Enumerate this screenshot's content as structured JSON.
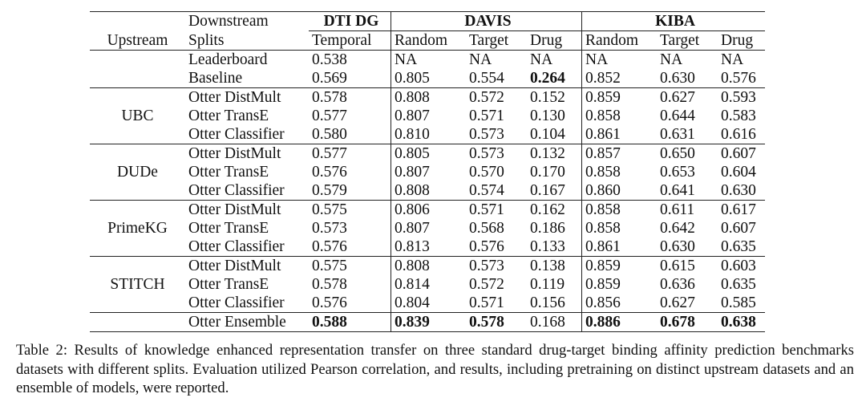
{
  "header": {
    "downstream_label": "Downstream",
    "upstream_label": "Upstream",
    "splits_label": "Splits",
    "groups": [
      "DTI DG",
      "DAVIS",
      "KIBA"
    ],
    "subheaders": [
      "Temporal",
      "Random",
      "Target",
      "Drug",
      "Random",
      "Target",
      "Drug"
    ]
  },
  "rows": [
    {
      "upstream": "",
      "split": "Leaderboard",
      "values": [
        "0.538",
        "NA",
        "NA",
        "NA",
        "NA",
        "NA",
        "NA"
      ]
    },
    {
      "upstream": "",
      "split": "Baseline",
      "values": [
        "0.569",
        "0.805",
        "0.554",
        "0.264",
        "0.852",
        "0.630",
        "0.576"
      ]
    },
    {
      "upstream": "UBC",
      "split": "Otter DistMult",
      "values": [
        "0.578",
        "0.808",
        "0.572",
        "0.152",
        "0.859",
        "0.627",
        "0.593"
      ]
    },
    {
      "upstream": "",
      "split": "Otter TransE",
      "values": [
        "0.577",
        "0.807",
        "0.571",
        "0.130",
        "0.858",
        "0.644",
        "0.583"
      ]
    },
    {
      "upstream": "",
      "split": "Otter Classifier",
      "values": [
        "0.580",
        "0.810",
        "0.573",
        "0.104",
        "0.861",
        "0.631",
        "0.616"
      ]
    },
    {
      "upstream": "DUDe",
      "split": "Otter DistMult",
      "values": [
        "0.577",
        "0.805",
        "0.573",
        "0.132",
        "0.857",
        "0.650",
        "0.607"
      ]
    },
    {
      "upstream": "",
      "split": "Otter TransE",
      "values": [
        "0.576",
        "0.807",
        "0.570",
        "0.170",
        "0.858",
        "0.653",
        "0.604"
      ]
    },
    {
      "upstream": "",
      "split": "Otter Classifier",
      "values": [
        "0.579",
        "0.808",
        "0.574",
        "0.167",
        "0.860",
        "0.641",
        "0.630"
      ]
    },
    {
      "upstream": "PrimeKG",
      "split": "Otter DistMult",
      "values": [
        "0.575",
        "0.806",
        "0.571",
        "0.162",
        "0.858",
        "0.611",
        "0.617"
      ]
    },
    {
      "upstream": "",
      "split": "Otter TransE",
      "values": [
        "0.573",
        "0.807",
        "0.568",
        "0.186",
        "0.858",
        "0.642",
        "0.607"
      ]
    },
    {
      "upstream": "",
      "split": "Otter Classifier",
      "values": [
        "0.576",
        "0.813",
        "0.576",
        "0.133",
        "0.861",
        "0.630",
        "0.635"
      ]
    },
    {
      "upstream": "STITCH",
      "split": "Otter DistMult",
      "values": [
        "0.575",
        "0.808",
        "0.573",
        "0.138",
        "0.859",
        "0.615",
        "0.603"
      ]
    },
    {
      "upstream": "",
      "split": "Otter TransE",
      "values": [
        "0.578",
        "0.814",
        "0.572",
        "0.119",
        "0.859",
        "0.636",
        "0.635"
      ]
    },
    {
      "upstream": "",
      "split": "Otter Classifier",
      "values": [
        "0.576",
        "0.804",
        "0.571",
        "0.156",
        "0.856",
        "0.627",
        "0.585"
      ]
    },
    {
      "upstream": "",
      "split": "Otter Ensemble",
      "values": [
        "0.588",
        "0.839",
        "0.578",
        "0.168",
        "0.886",
        "0.678",
        "0.638"
      ]
    }
  ],
  "caption": "Table 2:  Results of knowledge enhanced representation transfer on three standard drug-target binding affinity prediction benchmarks datasets with different splits. Evaluation utilized Pearson correlation, and results, including pretraining on distinct upstream datasets and an ensemble of models, were reported."
}
